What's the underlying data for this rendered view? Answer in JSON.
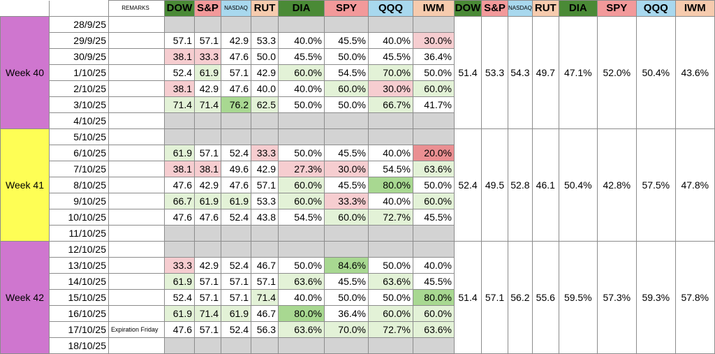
{
  "headers": {
    "remarks": "REMARKS",
    "left": [
      "DOW",
      "S&P",
      "NASDAQ",
      "RUT",
      "DIA",
      "SPY",
      "QQQ",
      "IWM"
    ],
    "right": [
      "DOW",
      "S&P",
      "NASDAQ",
      "RUT",
      "DIA",
      "SPY",
      "QQQ",
      "IWM"
    ]
  },
  "colors": {
    "dow_header": "#4a8a36",
    "sp_header": "#f2999a",
    "nasdaq_header": "#a8d8ee",
    "rut_header": "#f6cbae",
    "week_purple": "#cf76cf",
    "week_yellow": "#fefe55",
    "blank_row": "#d3d3d3"
  },
  "weeks": [
    {
      "label": "Week 40",
      "averages": [
        "51.4",
        "53.3",
        "54.3",
        "49.7",
        "47.1%",
        "52.0%",
        "50.4%",
        "43.6%"
      ],
      "rows": [
        {
          "date": "28/9/25",
          "remark": "",
          "values": []
        },
        {
          "date": "29/9/25",
          "remark": "",
          "values": [
            "57.1",
            "57.1",
            "42.9",
            "53.3",
            "40.0%",
            "45.5%",
            "40.0%",
            "30.0%"
          ]
        },
        {
          "date": "30/9/25",
          "remark": "",
          "values": [
            "38.1",
            "33.3",
            "47.6",
            "50.0",
            "45.5%",
            "50.0%",
            "45.5%",
            "36.4%"
          ]
        },
        {
          "date": "1/10/25",
          "remark": "",
          "values": [
            "52.4",
            "61.9",
            "57.1",
            "42.9",
            "60.0%",
            "54.5%",
            "70.0%",
            "50.0%"
          ]
        },
        {
          "date": "2/10/25",
          "remark": "",
          "values": [
            "38.1",
            "42.9",
            "47.6",
            "40.0",
            "40.0%",
            "60.0%",
            "30.0%",
            "60.0%"
          ]
        },
        {
          "date": "3/10/25",
          "remark": "",
          "values": [
            "71.4",
            "71.4",
            "76.2",
            "62.5",
            "50.0%",
            "50.0%",
            "66.7%",
            "41.7%"
          ]
        },
        {
          "date": "4/10/25",
          "remark": "",
          "values": []
        }
      ]
    },
    {
      "label": "Week 41",
      "averages": [
        "52.4",
        "49.5",
        "52.8",
        "46.1",
        "50.4%",
        "42.8%",
        "57.5%",
        "47.8%"
      ],
      "rows": [
        {
          "date": "5/10/25",
          "remark": "",
          "values": []
        },
        {
          "date": "6/10/25",
          "remark": "",
          "values": [
            "61.9",
            "57.1",
            "52.4",
            "33.3",
            "50.0%",
            "45.5%",
            "40.0%",
            "20.0%"
          ]
        },
        {
          "date": "7/10/25",
          "remark": "",
          "values": [
            "38.1",
            "38.1",
            "49.6",
            "42.9",
            "27.3%",
            "30.0%",
            "54.5%",
            "63.6%"
          ]
        },
        {
          "date": "8/10/25",
          "remark": "",
          "values": [
            "47.6",
            "42.9",
            "47.6",
            "57.1",
            "60.0%",
            "45.5%",
            "80.0%",
            "50.0%"
          ]
        },
        {
          "date": "9/10/25",
          "remark": "",
          "values": [
            "66.7",
            "61.9",
            "61.9",
            "53.3",
            "60.0%",
            "33.3%",
            "40.0%",
            "60.0%"
          ]
        },
        {
          "date": "10/10/25",
          "remark": "",
          "values": [
            "47.6",
            "47.6",
            "52.4",
            "43.8",
            "54.5%",
            "60.0%",
            "72.7%",
            "45.5%"
          ]
        },
        {
          "date": "11/10/25",
          "remark": "",
          "values": []
        }
      ]
    },
    {
      "label": "Week 42",
      "averages": [
        "51.4",
        "57.1",
        "56.2",
        "55.6",
        "59.5%",
        "57.3%",
        "59.3%",
        "57.8%"
      ],
      "rows": [
        {
          "date": "12/10/25",
          "remark": "",
          "values": []
        },
        {
          "date": "13/10/25",
          "remark": "",
          "values": [
            "33.3",
            "42.9",
            "52.4",
            "46.7",
            "50.0%",
            "84.6%",
            "50.0%",
            "40.0%"
          ]
        },
        {
          "date": "14/10/25",
          "remark": "",
          "values": [
            "61.9",
            "57.1",
            "57.1",
            "57.1",
            "63.6%",
            "45.5%",
            "63.6%",
            "45.5%"
          ]
        },
        {
          "date": "15/10/25",
          "remark": "",
          "values": [
            "52.4",
            "57.1",
            "57.1",
            "71.4",
            "40.0%",
            "50.0%",
            "50.0%",
            "80.0%"
          ]
        },
        {
          "date": "16/10/25",
          "remark": "",
          "values": [
            "61.9",
            "71.4",
            "61.9",
            "46.7",
            "80.0%",
            "36.4%",
            "60.0%",
            "60.0%"
          ]
        },
        {
          "date": "17/10/25",
          "remark": "Expiration Friday",
          "values": [
            "47.6",
            "57.1",
            "52.4",
            "56.3",
            "63.6%",
            "70.0%",
            "72.7%",
            "63.6%"
          ]
        },
        {
          "date": "18/10/25",
          "remark": "",
          "values": []
        }
      ]
    }
  ],
  "cell_colors": {
    "29/9/25": [
      "",
      "",
      "",
      "",
      "",
      "",
      "",
      "r1"
    ],
    "30/9/25": [
      "r1",
      "r1",
      "",
      "",
      "",
      "",
      "",
      ""
    ],
    "1/10/25": [
      "",
      "g1",
      "",
      "",
      "g1",
      "",
      "g1",
      ""
    ],
    "2/10/25": [
      "r1",
      "",
      "",
      "",
      "",
      "g1",
      "r1",
      "g1"
    ],
    "3/10/25": [
      "g1",
      "g1",
      "g3",
      "g1",
      "",
      "",
      "g1",
      ""
    ],
    "6/10/25": [
      "g1",
      "",
      "",
      "r1",
      "",
      "",
      "",
      "r2"
    ],
    "7/10/25": [
      "r1",
      "r1",
      "",
      "",
      "r1",
      "r1",
      "",
      "g1"
    ],
    "8/10/25": [
      "",
      "",
      "",
      "",
      "g1",
      "",
      "g3",
      ""
    ],
    "9/10/25": [
      "g1",
      "g1",
      "g1",
      "",
      "g1",
      "r1",
      "",
      "g1"
    ],
    "10/10/25": [
      "",
      "",
      "",
      "",
      "",
      "g1",
      "g1",
      ""
    ],
    "13/10/25": [
      "r1",
      "",
      "",
      "",
      "",
      "g3",
      "",
      ""
    ],
    "14/10/25": [
      "g1",
      "",
      "",
      "",
      "g1",
      "",
      "g1",
      ""
    ],
    "15/10/25": [
      "",
      "",
      "",
      "g1",
      "",
      "",
      "",
      "g3"
    ],
    "16/10/25": [
      "g1",
      "g1",
      "g1",
      "",
      "g3",
      "",
      "g1",
      "g1"
    ],
    "17/10/25": [
      "",
      "",
      "",
      "",
      "g1",
      "g1",
      "g1",
      "g1"
    ]
  }
}
